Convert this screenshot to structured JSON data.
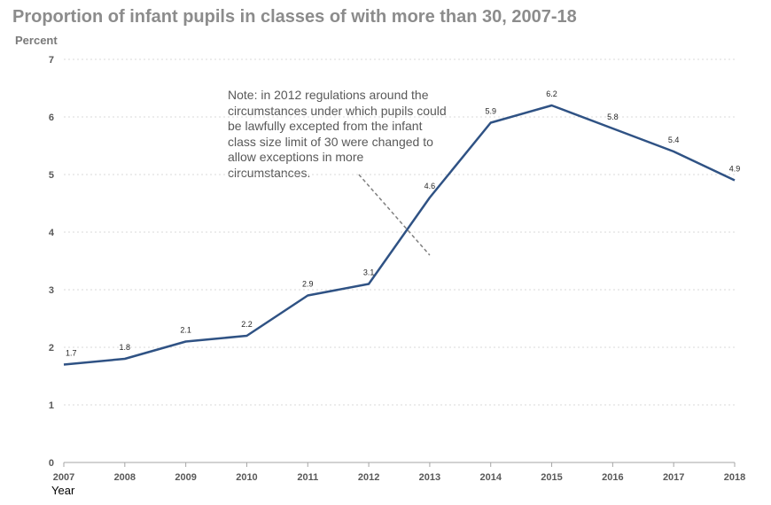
{
  "chart": {
    "title": "Proportion of infant pupils in classes of with more than 30, 2007-18",
    "y_unit": "Percent",
    "x_title": "Year",
    "note": "Note: in 2012 regulations around the circumstances under which pupils could be lawfully excepted from the infant class size limit of 30 were changed to allow exceptions in more circumstances."
  },
  "chart_data": {
    "type": "line",
    "title": "Proportion of infant pupils in classes of with more than 30, 2007-18",
    "xlabel": "Year",
    "ylabel": "Percent",
    "x": [
      "2007",
      "2008",
      "2009",
      "2010",
      "2011",
      "2012",
      "2013",
      "2014",
      "2015",
      "2016",
      "2017",
      "2018"
    ],
    "series": [
      {
        "values": [
          1.7,
          1.8,
          2.1,
          2.2,
          2.9,
          3.1,
          4.6,
          5.9,
          6.2,
          5.8,
          5.4,
          4.9
        ],
        "color": "#2f5284"
      }
    ],
    "data_labels": [
      "1.7",
      "1.8",
      "2.1",
      "2.2",
      "2.9",
      "3.1",
      "4.6",
      "5.9",
      "6.2",
      "5.8",
      "5.4",
      "4.9"
    ],
    "yticks": [
      0,
      1,
      2,
      3,
      4,
      5,
      6,
      7
    ],
    "ylim": [
      0,
      7
    ],
    "grid": "horizontal dashed",
    "legend": "none",
    "annotation": {
      "text": "Note: in 2012 regulations around the circumstances under which pupils could be lawfully excepted from the infant class size limit of 30 were changed to allow exceptions in more circumstances.",
      "style": "dashed pointer line",
      "x_year": "2013"
    }
  }
}
